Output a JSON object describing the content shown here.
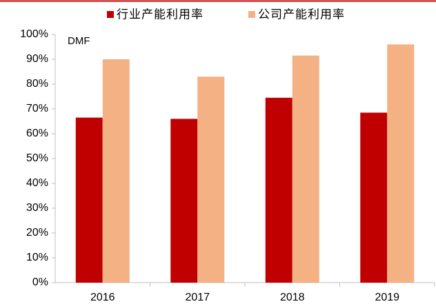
{
  "chart_data": {
    "type": "bar",
    "annotation": "DMF",
    "categories": [
      "2016",
      "2017",
      "2018",
      "2019"
    ],
    "series": [
      {
        "name": "行业产能利用率",
        "color": "#c00000",
        "values": [
          66.5,
          66,
          74.5,
          68.5
        ]
      },
      {
        "name": "公司产能利用率",
        "color": "#f4b183",
        "values": [
          90,
          83,
          91.5,
          96
        ]
      }
    ],
    "ylim": [
      0,
      100
    ],
    "yticks": [
      {
        "value": 0,
        "label": "0%"
      },
      {
        "value": 10,
        "label": "10%"
      },
      {
        "value": 20,
        "label": "20%"
      },
      {
        "value": 30,
        "label": "30%"
      },
      {
        "value": 40,
        "label": "40%"
      },
      {
        "value": 50,
        "label": "50%"
      },
      {
        "value": 60,
        "label": "60%"
      },
      {
        "value": 70,
        "label": "70%"
      },
      {
        "value": 80,
        "label": "80%"
      },
      {
        "value": 90,
        "label": "90%"
      },
      {
        "value": 100,
        "label": "100%"
      }
    ],
    "grid": false,
    "legend": "top"
  }
}
